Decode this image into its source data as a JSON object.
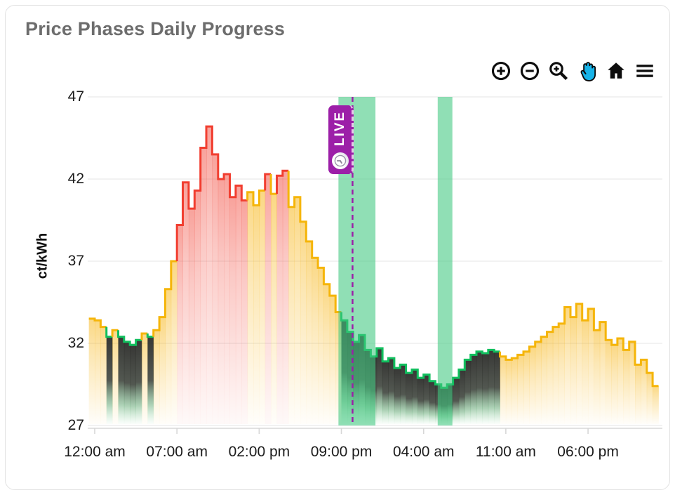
{
  "card": {
    "title": "Price Phases Daily Progress"
  },
  "toolbar": {
    "buttons": [
      {
        "icon": "zoom-in-icon",
        "active": false
      },
      {
        "icon": "zoom-out-icon",
        "active": false
      },
      {
        "icon": "box-zoom-icon",
        "active": false
      },
      {
        "icon": "pan-hand-icon",
        "active": true,
        "active_color": "#17B3E8"
      },
      {
        "icon": "home-reset-icon",
        "active": false
      },
      {
        "icon": "menu-icon",
        "active": false
      }
    ]
  },
  "live_marker": {
    "label": "LIVE",
    "hour": 21.95,
    "line_color": "#9C1FA8",
    "badge_color": "#9C1FA8"
  },
  "chart_data": {
    "type": "area",
    "title": "Price Phases Daily Progress",
    "ylabel": "ct/kWh",
    "xlabel": "",
    "grid": true,
    "legend": "none",
    "ylim": [
      27,
      47
    ],
    "yticks": [
      47,
      42,
      37,
      32,
      27
    ],
    "ytick_labels": [
      "47",
      "42",
      "37",
      "32",
      "27"
    ],
    "xticks": [
      {
        "hour": 0,
        "label": "12:00 am"
      },
      {
        "hour": 7,
        "label": "07:00 am"
      },
      {
        "hour": 14,
        "label": "02:00 pm"
      },
      {
        "hour": 21,
        "label": "09:00 pm"
      },
      {
        "hour": 28,
        "label": "04:00 am"
      },
      {
        "hour": 35,
        "label": "11:00 am"
      },
      {
        "hour": 42,
        "label": "06:00 pm"
      }
    ],
    "series": {
      "name": "price",
      "unit": "ct/kWh",
      "start_hour": -0.5,
      "step_hours": 0.5,
      "values": [
        33.5,
        33.4,
        33.0,
        32.4,
        32.8,
        32.4,
        32.1,
        31.9,
        32.2,
        32.6,
        32.4,
        32.8,
        33.6,
        35.3,
        37.0,
        39.2,
        41.8,
        40.2,
        41.3,
        43.9,
        45.2,
        43.5,
        42.0,
        42.3,
        40.9,
        41.6,
        40.7,
        41.2,
        40.4,
        41.3,
        42.3,
        41.1,
        42.2,
        42.5,
        40.3,
        40.9,
        39.4,
        38.2,
        37.2,
        36.6,
        35.6,
        34.9,
        33.9,
        33.4,
        32.7,
        32.1,
        32.5,
        31.6,
        31.2,
        31.7,
        30.9,
        31.1,
        30.5,
        30.7,
        30.2,
        30.4,
        29.9,
        30.1,
        29.7,
        29.5,
        29.3,
        29.5,
        29.9,
        30.4,
        31.0,
        31.3,
        31.5,
        31.4,
        31.6,
        31.5,
        31.2,
        31.0,
        31.1,
        31.3,
        31.5,
        31.8,
        32.1,
        32.4,
        32.7,
        33.0,
        33.2,
        34.2,
        33.6,
        34.4,
        33.4,
        34.1,
        32.8,
        33.3,
        32.2,
        31.9,
        32.3,
        31.6,
        32.1,
        30.7,
        31.0,
        30.2,
        29.4
      ]
    },
    "phases": [
      {
        "from": -0.5,
        "to": 1.0,
        "phase": "yellow"
      },
      {
        "from": 1.0,
        "to": 1.5,
        "phase": "green"
      },
      {
        "from": 1.5,
        "to": 2.0,
        "phase": "yellow"
      },
      {
        "from": 2.0,
        "to": 4.0,
        "phase": "green"
      },
      {
        "from": 4.0,
        "to": 4.5,
        "phase": "yellow"
      },
      {
        "from": 4.5,
        "to": 5.0,
        "phase": "green"
      },
      {
        "from": 5.0,
        "to": 7.0,
        "phase": "yellow"
      },
      {
        "from": 7.0,
        "to": 13.0,
        "phase": "red"
      },
      {
        "from": 13.0,
        "to": 14.5,
        "phase": "yellow"
      },
      {
        "from": 14.5,
        "to": 15.0,
        "phase": "red"
      },
      {
        "from": 15.0,
        "to": 15.5,
        "phase": "yellow"
      },
      {
        "from": 15.5,
        "to": 16.5,
        "phase": "red"
      },
      {
        "from": 16.5,
        "to": 21.0,
        "phase": "yellow"
      },
      {
        "from": 21.0,
        "to": 34.5,
        "phase": "green"
      },
      {
        "from": 34.5,
        "to": 48.0,
        "phase": "yellow"
      }
    ],
    "highlight_bands": [
      {
        "from": 20.75,
        "to": 23.9
      },
      {
        "from": 29.2,
        "to": 30.45
      }
    ],
    "colors": {
      "yellow_line": "#F5B50A",
      "red_line": "#F13E30",
      "green_line": "#11BF5E",
      "band_fill": "rgba(64,200,128,0.58)",
      "grid_line": "#ebebeb",
      "axis_line": "#d7d7d7",
      "live_purple": "#9C1FA8"
    }
  }
}
